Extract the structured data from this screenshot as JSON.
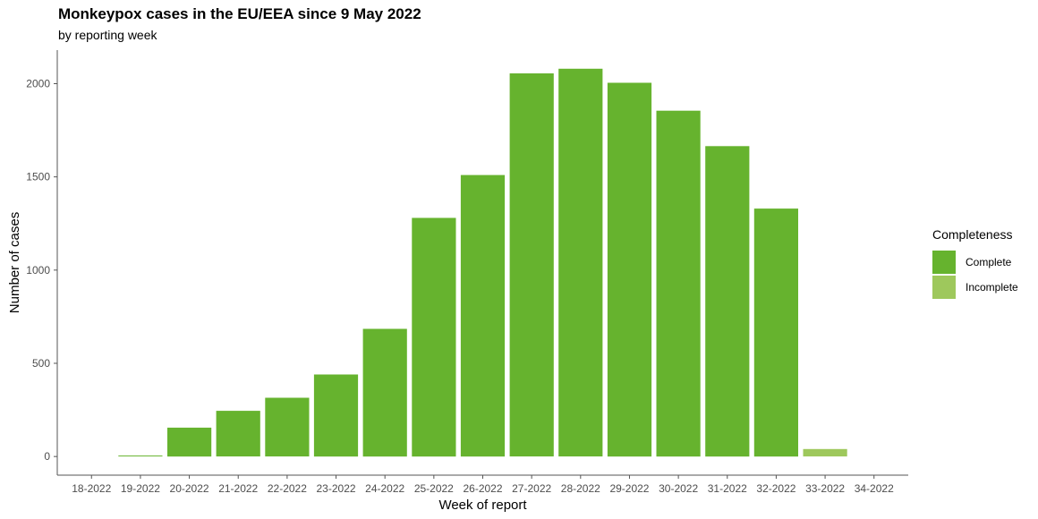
{
  "header": {
    "title": "Monkeypox cases in the EU/EEA since 9 May 2022",
    "subtitle": "by reporting week"
  },
  "legend": {
    "title": "Completeness",
    "items": [
      {
        "label": "Complete",
        "color": "#66b32e"
      },
      {
        "label": "Incomplete",
        "color": "#9ec85c"
      }
    ]
  },
  "chart_data": {
    "type": "bar",
    "title": "Monkeypox cases in the EU/EEA since 9 May 2022",
    "subtitle": "by reporting week",
    "xlabel": "Week of report",
    "ylabel": "Number of cases",
    "ylim": [
      -100,
      2180
    ],
    "yticks": [
      0,
      500,
      1000,
      1500,
      2000
    ],
    "categories": [
      "18-2022",
      "19-2022",
      "20-2022",
      "21-2022",
      "22-2022",
      "23-2022",
      "24-2022",
      "25-2022",
      "26-2022",
      "27-2022",
      "28-2022",
      "29-2022",
      "30-2022",
      "31-2022",
      "32-2022",
      "33-2022",
      "34-2022"
    ],
    "series": [
      {
        "name": "Complete",
        "color": "#66b32e",
        "values": [
          null,
          5,
          155,
          245,
          315,
          440,
          685,
          1280,
          1510,
          2055,
          2080,
          2005,
          1855,
          1665,
          1330,
          null,
          null
        ]
      },
      {
        "name": "Incomplete",
        "color": "#9ec85c",
        "values": [
          null,
          null,
          null,
          null,
          null,
          null,
          null,
          null,
          null,
          null,
          null,
          null,
          null,
          null,
          null,
          40,
          null
        ]
      }
    ],
    "grid": false,
    "legend_position": "right"
  }
}
